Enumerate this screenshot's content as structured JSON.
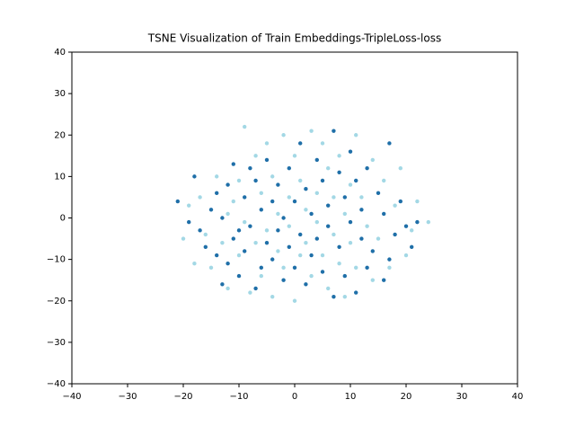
{
  "chart_data": {
    "type": "scatter",
    "title": "TSNE Visualization of Train Embeddings-TripleLoss-loss",
    "xlim": [
      -40,
      40
    ],
    "ylim": [
      -40,
      40
    ],
    "xticks": [
      {
        "value": -40,
        "label": "−40"
      },
      {
        "value": -30,
        "label": "−30"
      },
      {
        "value": -20,
        "label": "−20"
      },
      {
        "value": -10,
        "label": "−10"
      },
      0,
      10,
      20,
      30,
      40
    ],
    "yticks": [
      {
        "value": -40,
        "label": "−40"
      },
      {
        "value": -30,
        "label": "−30"
      },
      {
        "value": -20,
        "label": "−20"
      },
      {
        "value": -10,
        "label": "−10"
      },
      0,
      10,
      20,
      30,
      40
    ],
    "series": [
      {
        "color": "#1f6fa8",
        "x": [
          -21,
          -19,
          -18,
          -17,
          -16,
          -15,
          -14,
          -14,
          -13,
          -13,
          -12,
          -12,
          -11,
          -11,
          -10,
          -10,
          -9,
          -9,
          -8,
          -8,
          -7,
          -7,
          -6,
          -6,
          -5,
          -5,
          -4,
          -4,
          -3,
          -3,
          -2,
          -2,
          -1,
          -1,
          0,
          0,
          1,
          1,
          2,
          2,
          3,
          3,
          4,
          4,
          5,
          5,
          6,
          6,
          7,
          7,
          8,
          8,
          9,
          9,
          10,
          10,
          11,
          11,
          12,
          12,
          13,
          13,
          14,
          15,
          16,
          16,
          17,
          17,
          18,
          19,
          20,
          21,
          22
        ],
        "values": [
          4,
          -1,
          10,
          -3,
          -7,
          2,
          -9,
          6,
          -16,
          0,
          -11,
          8,
          -5,
          13,
          -3,
          -14,
          5,
          -8,
          12,
          -2,
          -17,
          9,
          -12,
          2,
          -6,
          14,
          -10,
          4,
          -3,
          8,
          -15,
          0,
          12,
          -7,
          -12,
          4,
          18,
          -4,
          -16,
          7,
          -9,
          1,
          14,
          -5,
          -13,
          9,
          -2,
          3,
          -19,
          21,
          -7,
          11,
          -14,
          5,
          -1,
          16,
          -18,
          9,
          -5,
          2,
          -12,
          12,
          -8,
          6,
          -15,
          1,
          18,
          -10,
          -4,
          4,
          -2,
          -7,
          -1
        ]
      },
      {
        "color": "#a3d8e5",
        "x": [
          -20,
          -19,
          -18,
          -17,
          -16,
          -15,
          -14,
          -13,
          -12,
          -12,
          -11,
          -10,
          -10,
          -9,
          -9,
          -8,
          -7,
          -7,
          -6,
          -6,
          -5,
          -5,
          -4,
          -4,
          -3,
          -3,
          -2,
          -2,
          -1,
          -1,
          0,
          0,
          1,
          1,
          2,
          2,
          3,
          3,
          4,
          4,
          5,
          5,
          6,
          6,
          7,
          7,
          8,
          8,
          9,
          9,
          10,
          10,
          11,
          11,
          12,
          13,
          14,
          14,
          15,
          16,
          17,
          18,
          19,
          20,
          21,
          22,
          24
        ],
        "values": [
          -5,
          3,
          -11,
          5,
          -4,
          -12,
          10,
          -6,
          1,
          -17,
          4,
          -9,
          9,
          22,
          -1,
          -18,
          15,
          -6,
          6,
          -14,
          18,
          -3,
          -19,
          10,
          -8,
          1,
          20,
          -12,
          5,
          -2,
          -20,
          15,
          9,
          -9,
          2,
          -6,
          21,
          -14,
          6,
          -1,
          18,
          -9,
          12,
          -17,
          -4,
          5,
          15,
          -11,
          1,
          -19,
          8,
          -6,
          20,
          -12,
          5,
          -2,
          14,
          -15,
          -5,
          9,
          -12,
          3,
          12,
          -9,
          -3,
          4,
          -1
        ]
      }
    ]
  }
}
